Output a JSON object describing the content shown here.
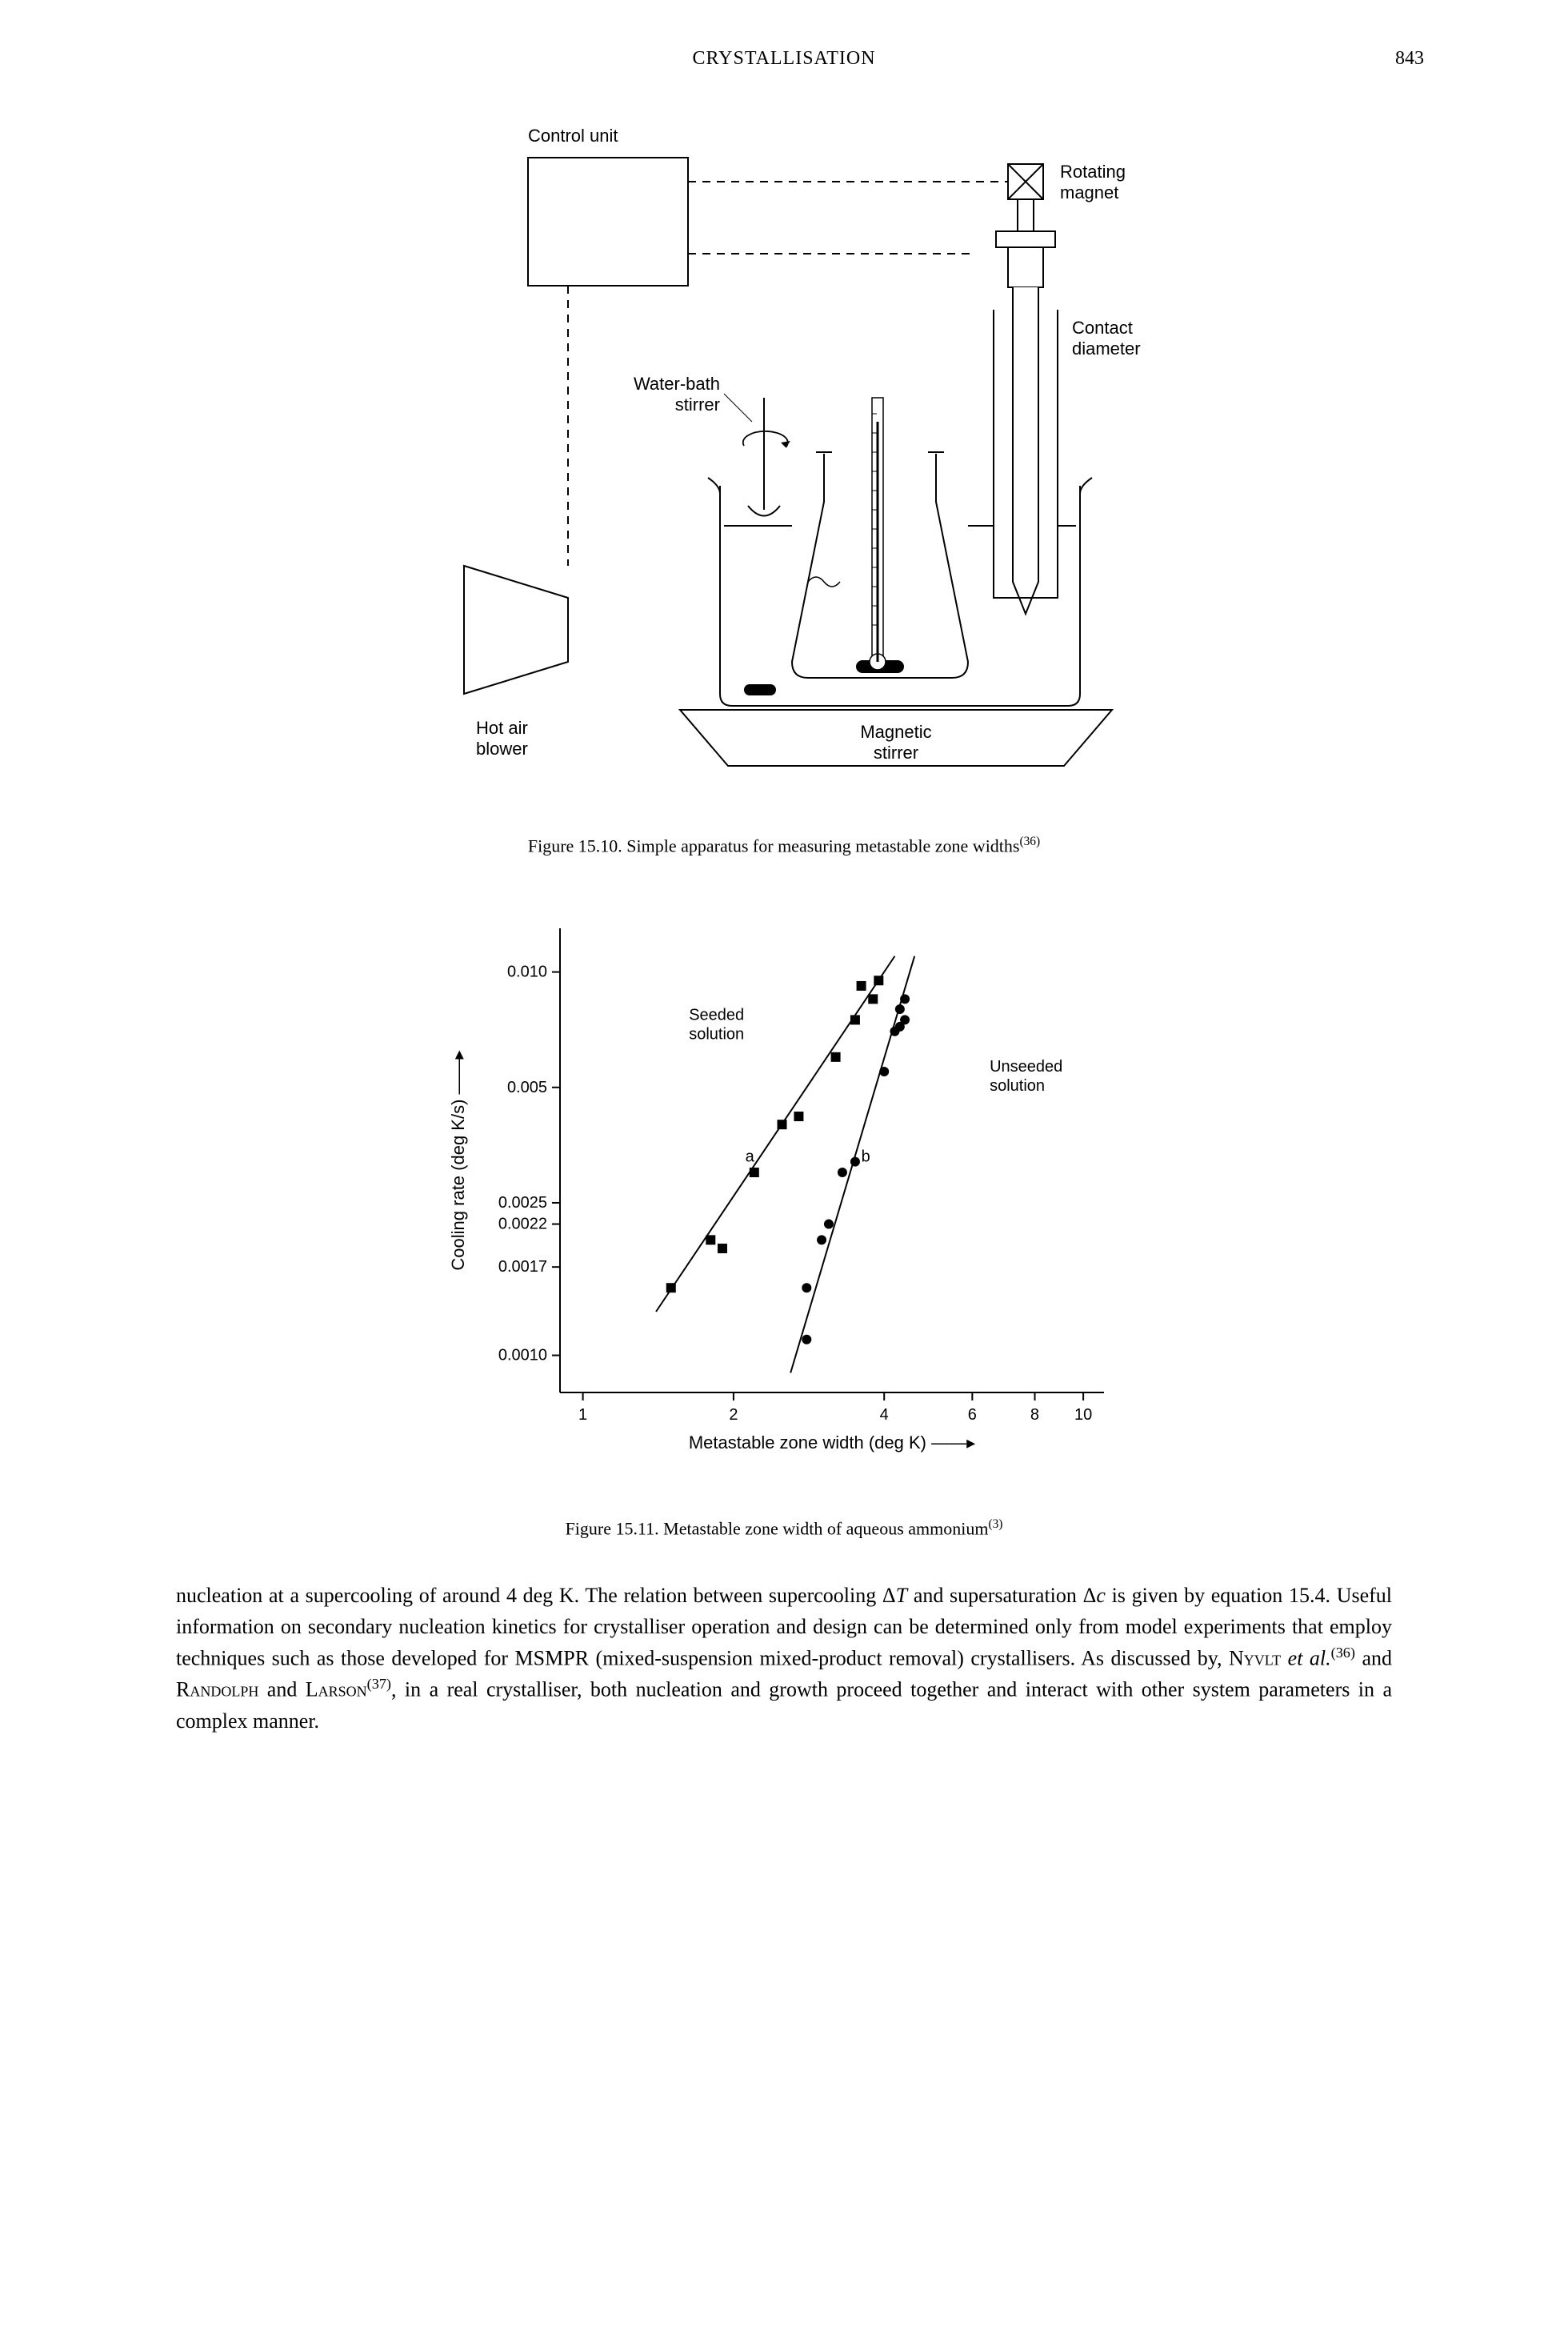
{
  "header": {
    "title": "CRYSTALLISATION",
    "pagenum": "843"
  },
  "fig1": {
    "caption_pre": "Figure 15.10.   Simple apparatus for measuring metastable zone widths",
    "caption_sup": "(36)",
    "labels": {
      "control_unit": "Control unit",
      "rotating_magnet": "Rotating\nmagnet",
      "contact_diameter": "Contact\ndiameter",
      "water_bath_stirrer": "Water-bath\nstirrer",
      "hot_air_blower": "Hot air\nblower",
      "magnetic_stirrer": "Magnetic\nstirrer"
    },
    "colors": {
      "stroke": "#000000",
      "fill_white": "#ffffff",
      "fill_light": "#f0f0f0"
    },
    "stroke_width": 2
  },
  "fig2": {
    "caption_pre": "Figure 15.11.   Metastable zone width of aqueous ammonium",
    "caption_sup": "(3)",
    "type": "scatter-loglog",
    "xlabel": "Metastable zone width (deg K) ——▸",
    "ylabel": "Cooling rate (deg K/s) ——▸",
    "series_a": {
      "label": "Seeded\nsolution",
      "letter": "a",
      "marker": "square",
      "marker_color": "#000000",
      "line_color": "#000000",
      "points_xy": [
        [
          1.5,
          0.0015
        ],
        [
          1.8,
          0.002
        ],
        [
          1.9,
          0.0019
        ],
        [
          2.2,
          0.003
        ],
        [
          2.5,
          0.004
        ],
        [
          2.7,
          0.0042
        ],
        [
          3.2,
          0.006
        ],
        [
          3.5,
          0.0075
        ],
        [
          3.8,
          0.0085
        ],
        [
          3.6,
          0.0092
        ],
        [
          3.9,
          0.0095
        ]
      ],
      "fit_line_xy": [
        [
          1.4,
          0.0013
        ],
        [
          4.2,
          0.011
        ]
      ]
    },
    "series_b": {
      "label": "Unseeded\nsolution",
      "letter": "b",
      "marker": "circle",
      "marker_color": "#000000",
      "line_color": "#000000",
      "points_xy": [
        [
          2.8,
          0.0011
        ],
        [
          2.8,
          0.0015
        ],
        [
          3.0,
          0.002
        ],
        [
          3.1,
          0.0022
        ],
        [
          3.3,
          0.003
        ],
        [
          3.5,
          0.0032
        ],
        [
          4.0,
          0.0055
        ],
        [
          4.2,
          0.007
        ],
        [
          4.3,
          0.0072
        ],
        [
          4.4,
          0.0075
        ],
        [
          4.3,
          0.008
        ],
        [
          4.4,
          0.0085
        ]
      ],
      "fit_line_xy": [
        [
          2.6,
          0.0009
        ],
        [
          4.6,
          0.011
        ]
      ]
    },
    "xticks": [
      1,
      2,
      4,
      6,
      8,
      10
    ],
    "yticks": [
      0.001,
      0.0017,
      0.0022,
      0.0025,
      0.005,
      0.01
    ],
    "xlim": [
      0.9,
      11
    ],
    "ylim": [
      0.0008,
      0.013
    ],
    "font_axis": 20,
    "font_label": 22,
    "stroke": "#000000",
    "bg": "#ffffff"
  },
  "body": {
    "para": "nucleation at a supercooling of around 4 deg K. The relation between supercooling Δ<i>T</i> and supersaturation Δ<i>c</i> is given by equation 15.4. Useful information on secondary nucleation kinetics for crystalliser operation and design can be determined only from model experiments that employ techniques such as those developed for MSMPR (mixed-suspension mixed-product removal) crystallisers. As discussed by, <span class=\"smallcaps\">Nyvlt</span> <i>et al.</i><sup>(36)</sup> and <span class=\"smallcaps\">Randolph</span> and <span class=\"smallcaps\">Larson</span><sup>(37)</sup>, in a real crystalliser, both nucleation and growth proceed together and interact with other system parameters in a complex manner."
  }
}
